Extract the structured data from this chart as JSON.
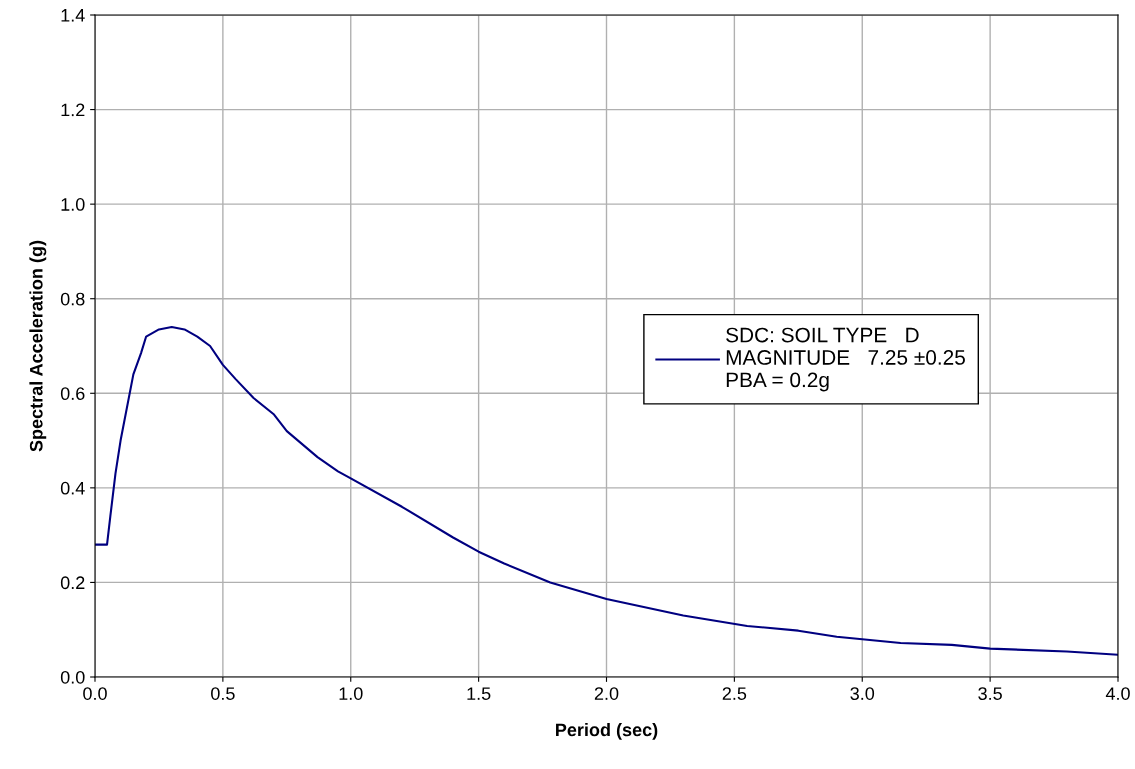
{
  "chart_data": {
    "type": "line",
    "xlabel": "Period (sec)",
    "ylabel": "Spectral Acceleration (g)",
    "xlim": [
      0,
      4
    ],
    "xticks": [
      {
        "value": 0,
        "label": "0.0"
      },
      0.5,
      {
        "value": 1,
        "label": "1.0"
      },
      1.5,
      {
        "value": 2,
        "label": "2.0"
      },
      2.5,
      {
        "value": 3,
        "label": "3.0"
      },
      3.5,
      {
        "value": 4,
        "label": "4.0"
      }
    ],
    "ylim": [
      0,
      1.4
    ],
    "yticks": [
      {
        "value": 0,
        "label": "0.0"
      },
      0.2,
      0.4,
      0.6,
      0.8,
      {
        "value": 1,
        "label": "1.0"
      },
      1.2,
      1.4
    ],
    "grid": true,
    "legend": "right",
    "marker": "none",
    "line_style": "solid",
    "series": [
      {
        "name": "SDC: SOIL TYPE   D\nMAGNITUDE   7.25 ±0.25\nPBA = 0.2g",
        "color": "#000080",
        "x": [
          0,
          0.047,
          0.06,
          0.08,
          0.1,
          0.15,
          0.18,
          0.2,
          0.25,
          0.3,
          0.35,
          0.4,
          0.45,
          0.5,
          0.55,
          0.62,
          0.7,
          0.75,
          0.87,
          0.95,
          1.0,
          1.2,
          1.4,
          1.5,
          1.6,
          1.78,
          2.0,
          2.3,
          2.55,
          2.75,
          2.9,
          3.15,
          3.35,
          3.5,
          3.8,
          4.0
        ],
        "values": [
          0.28,
          0.28,
          0.34,
          0.43,
          0.5,
          0.64,
          0.685,
          0.72,
          0.735,
          0.74,
          0.735,
          0.72,
          0.7,
          0.66,
          0.63,
          0.59,
          0.555,
          0.52,
          0.465,
          0.435,
          0.42,
          0.36,
          0.295,
          0.265,
          0.24,
          0.2,
          0.165,
          0.13,
          0.108,
          0.098,
          0.085,
          0.072,
          0.068,
          0.06,
          0.054,
          0.047
        ]
      }
    ]
  }
}
